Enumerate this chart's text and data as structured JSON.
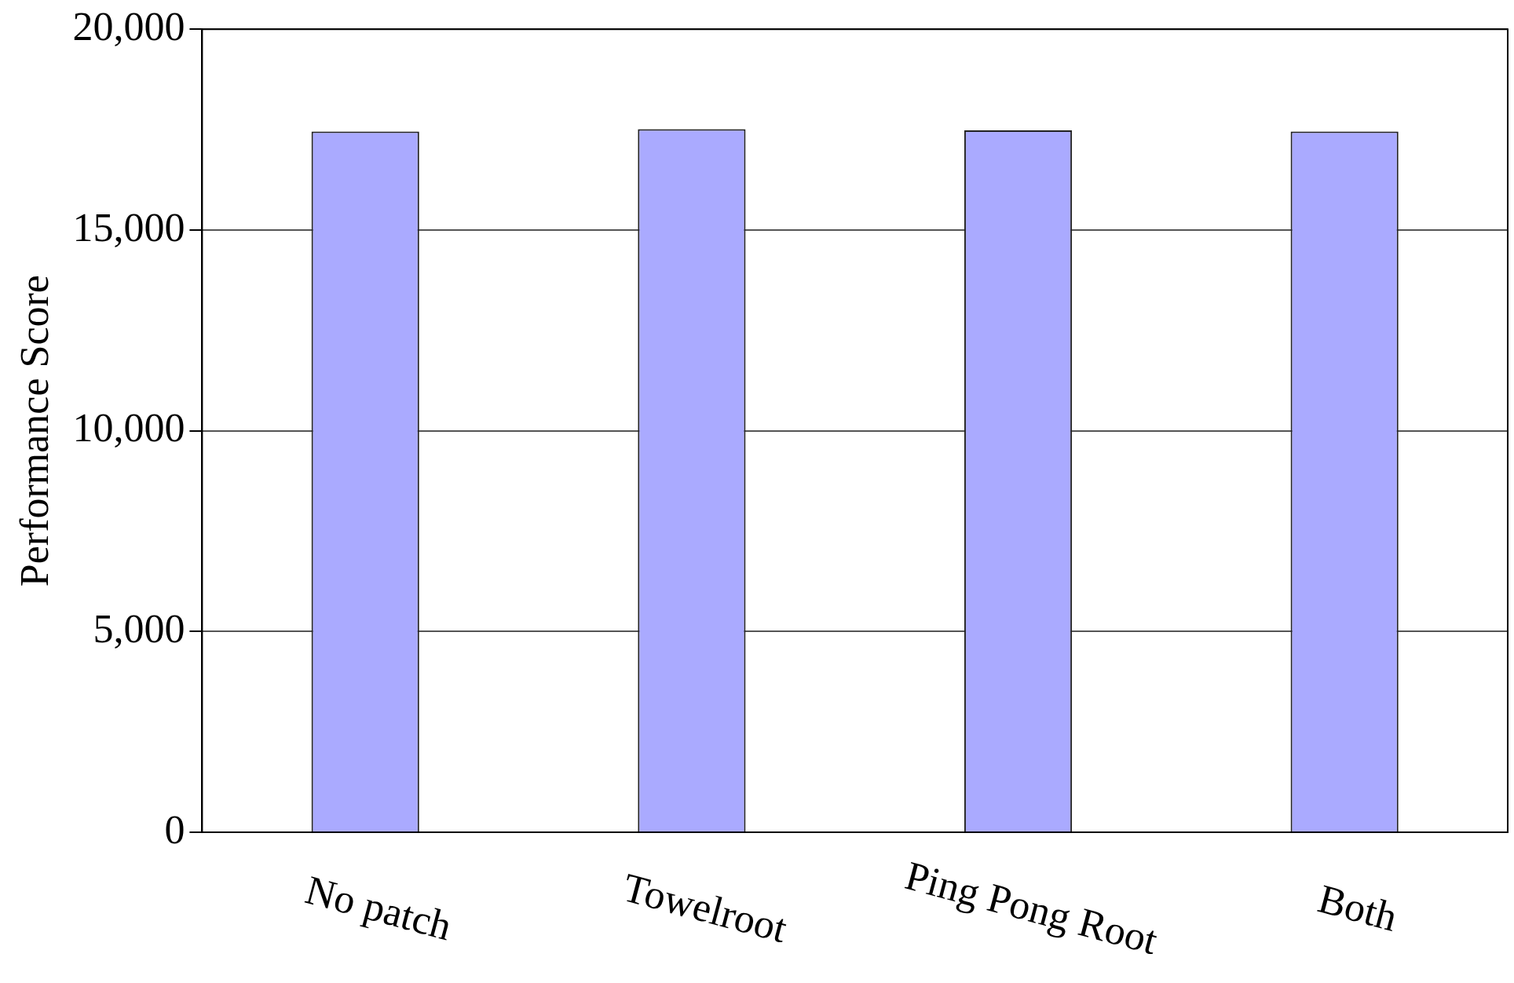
{
  "chart_data": {
    "type": "bar",
    "ylabel": "Performance Score",
    "categories": [
      "No patch",
      "Towelroot",
      "Ping Pong Root",
      "Both"
    ],
    "values": [
      17450,
      17510,
      17480,
      17450
    ],
    "color": "#aaaaff",
    "ylim": [
      0,
      20000
    ],
    "yticks": [
      {
        "value": 0,
        "label": "0"
      },
      {
        "value": 5000,
        "label": "5,000"
      },
      {
        "value": 10000,
        "label": "10,000"
      },
      {
        "value": 15000,
        "label": "15,000"
      },
      {
        "value": 20000,
        "label": "20,000"
      }
    ],
    "grid": "y"
  }
}
